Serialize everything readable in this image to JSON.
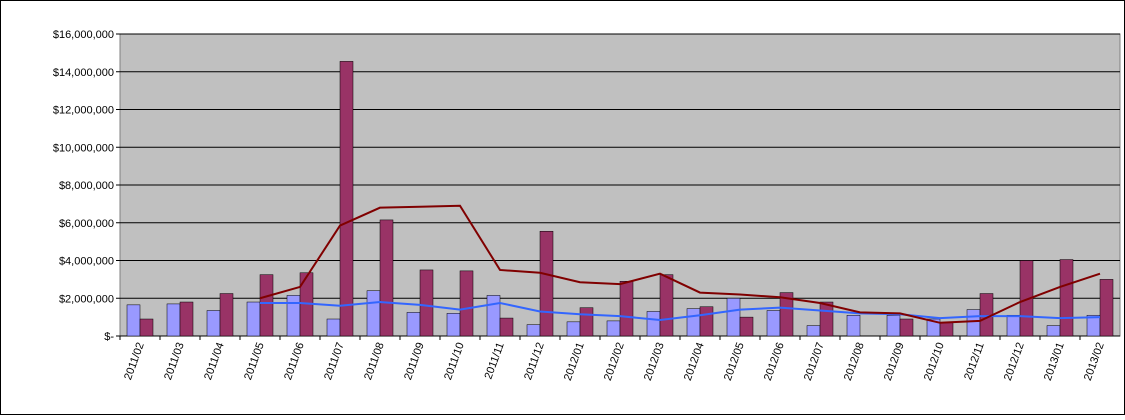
{
  "chart_data": {
    "type": "bar-line",
    "categories": [
      "2011/02",
      "2011/03",
      "2011/04",
      "2011/05",
      "2011/06",
      "2011/07",
      "2011/08",
      "2011/09",
      "2011/10",
      "2011/11",
      "2011/12",
      "2012/01",
      "2012/02",
      "2012/03",
      "2012/04",
      "2012/05",
      "2012/06",
      "2012/07",
      "2012/08",
      "2012/09",
      "2012/10",
      "2012/11",
      "2012/12",
      "2013/01",
      "2013/02"
    ],
    "series": [
      {
        "type": "bar",
        "color": "#9999ff",
        "values": [
          1650000,
          1700000,
          1350000,
          1800000,
          2150000,
          900000,
          2400000,
          1250000,
          1200000,
          2150000,
          600000,
          750000,
          800000,
          1300000,
          1450000,
          2000000,
          1350000,
          550000,
          1100000,
          1100000,
          900000,
          1400000,
          1100000,
          550000,
          1100000
        ]
      },
      {
        "type": "bar",
        "color": "#993366",
        "values": [
          900000,
          1800000,
          2250000,
          3250000,
          3350000,
          14550000,
          6150000,
          3500000,
          3450000,
          950000,
          5550000,
          1500000,
          2900000,
          3250000,
          1550000,
          1000000,
          2300000,
          1800000,
          0,
          900000,
          700000,
          2250000,
          4000000,
          4050000,
          3000000
        ]
      },
      {
        "type": "line",
        "color": "#3366ff",
        "values": [
          null,
          null,
          null,
          1750000,
          1750000,
          1600000,
          1800000,
          1650000,
          1400000,
          1750000,
          1300000,
          1150000,
          1050000,
          850000,
          1100000,
          1400000,
          1500000,
          1350000,
          1200000,
          1150000,
          950000,
          1050000,
          1050000,
          950000,
          1000000
        ]
      },
      {
        "type": "line",
        "color": "#800000",
        "values": [
          null,
          null,
          null,
          2000000,
          2600000,
          5850000,
          6800000,
          6850000,
          6900000,
          3500000,
          3350000,
          2850000,
          2750000,
          3300000,
          2300000,
          2200000,
          2050000,
          1750000,
          1250000,
          1200000,
          700000,
          800000,
          1800000,
          2600000,
          3300000
        ]
      }
    ],
    "ylim": [
      0,
      16000000
    ],
    "yticks": [
      {
        "value": 0,
        "label": "$-"
      },
      {
        "value": 2000000,
        "label": "$2,000,000"
      },
      {
        "value": 4000000,
        "label": "$4,000,000"
      },
      {
        "value": 6000000,
        "label": "$6,000,000"
      },
      {
        "value": 8000000,
        "label": "$8,000,000"
      },
      {
        "value": 10000000,
        "label": "$10,000,000"
      },
      {
        "value": 12000000,
        "label": "$12,000,000"
      },
      {
        "value": 14000000,
        "label": "$14,000,000"
      },
      {
        "value": 16000000,
        "label": "$16,000,000"
      }
    ],
    "grid": true,
    "plot_background": "#c0c0c0"
  }
}
